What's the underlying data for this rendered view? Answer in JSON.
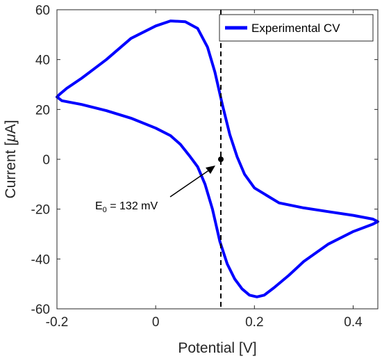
{
  "chart_data": {
    "type": "line",
    "xlabel": "Potential [V]",
    "ylabel_prefix": "Current [",
    "ylabel_mu": "μ",
    "ylabel_suffix": "A]",
    "xlim": [
      -0.2,
      0.45
    ],
    "ylim": [
      -60,
      60
    ],
    "xticks": [
      -0.2,
      0,
      0.2,
      0.4
    ],
    "xtick_labels": [
      "-0.2",
      "0",
      "0.2",
      "0.4"
    ],
    "yticks": [
      -60,
      -40,
      -20,
      0,
      20,
      40,
      60
    ],
    "ytick_labels": [
      "-60",
      "-40",
      "-20",
      "0",
      "20",
      "40",
      "60"
    ],
    "grid": false,
    "legend_position": "top-right",
    "series": [
      {
        "name": "Experimental CV",
        "color": "#0000ff",
        "x": [
          -0.2,
          -0.195,
          -0.18,
          -0.15,
          -0.1,
          -0.05,
          0.0,
          0.03,
          0.06,
          0.085,
          0.105,
          0.12,
          0.135,
          0.15,
          0.165,
          0.18,
          0.2,
          0.25,
          0.3,
          0.35,
          0.4,
          0.44,
          0.45,
          0.44,
          0.4,
          0.35,
          0.3,
          0.27,
          0.24,
          0.22,
          0.205,
          0.19,
          0.175,
          0.16,
          0.145,
          0.13,
          0.115,
          0.1,
          0.085,
          0.07,
          0.05,
          0.03,
          0.0,
          -0.05,
          -0.1,
          -0.15,
          -0.19,
          -0.2
        ],
        "y": [
          25,
          26,
          28.5,
          32.5,
          40,
          48.5,
          53.5,
          55.5,
          55.2,
          52.5,
          45,
          35,
          22,
          10,
          1,
          -6,
          -11.5,
          -17.5,
          -19.5,
          -21,
          -22.5,
          -24,
          -25,
          -26,
          -29,
          -34,
          -41,
          -46.5,
          -51.5,
          -54.5,
          -55.2,
          -54.5,
          -52,
          -48,
          -42,
          -33,
          -20,
          -10,
          -3,
          1,
          6,
          9.5,
          12.5,
          16.5,
          19.5,
          22,
          23.5,
          25
        ]
      }
    ],
    "annotations": [
      {
        "text_main": "E",
        "text_sub": "0",
        "text_rest": " = 132 mV",
        "x": 0.132,
        "y": 0
      }
    ],
    "vertical_line": {
      "x": 0.132,
      "style": "dashed",
      "color": "#000000"
    }
  }
}
